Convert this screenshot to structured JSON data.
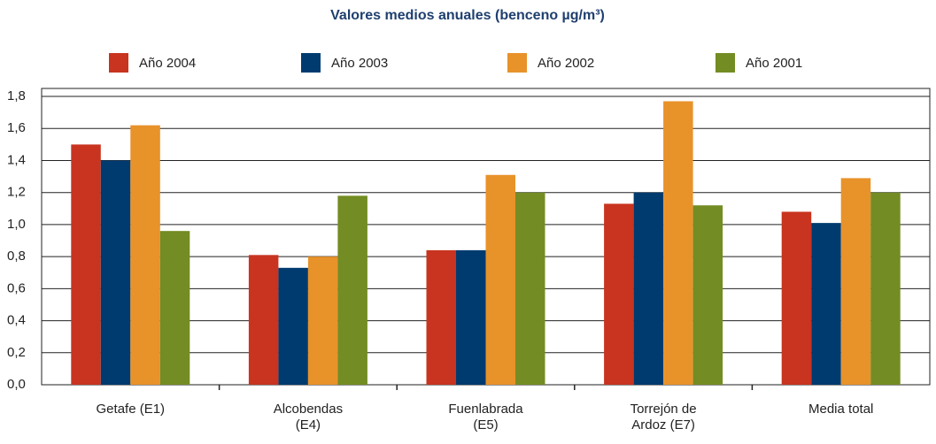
{
  "chart_data": {
    "type": "bar",
    "title": "Valores medios anuales (benceno µg/m³)",
    "categories": [
      "Getafe (E1)",
      "Alcobendas\n(E4)",
      "Fuenlabrada\n(E5)",
      "Torrejón de\nArdoz (E7)",
      "Media total"
    ],
    "series": [
      {
        "name": "Año 2004",
        "color": "#c8341f",
        "values": [
          1.5,
          0.81,
          0.84,
          1.13,
          1.08
        ]
      },
      {
        "name": "Año 2003",
        "color": "#003b6f",
        "values": [
          1.4,
          0.73,
          0.84,
          1.2,
          1.01
        ]
      },
      {
        "name": "Año 2002",
        "color": "#e8922a",
        "values": [
          1.62,
          0.8,
          1.31,
          1.77,
          1.29
        ]
      },
      {
        "name": "Año 2001",
        "color": "#738c23",
        "values": [
          0.96,
          1.18,
          1.2,
          1.12,
          1.2
        ]
      }
    ],
    "ylim": [
      0,
      1.85
    ],
    "yticks": [
      {
        "value": 0,
        "label": "0,0"
      },
      {
        "value": 0.2,
        "label": "0,2"
      },
      {
        "value": 0.4,
        "label": "0,4"
      },
      {
        "value": 0.6,
        "label": "0,6"
      },
      {
        "value": 0.8,
        "label": "0,8"
      },
      {
        "value": 1.0,
        "label": "1,0"
      },
      {
        "value": 1.2,
        "label": "1,2"
      },
      {
        "value": 1.4,
        "label": "1,4"
      },
      {
        "value": 1.6,
        "label": "1,6"
      },
      {
        "value": 1.8,
        "label": "1,8"
      }
    ],
    "grid": true,
    "legend": "top"
  }
}
